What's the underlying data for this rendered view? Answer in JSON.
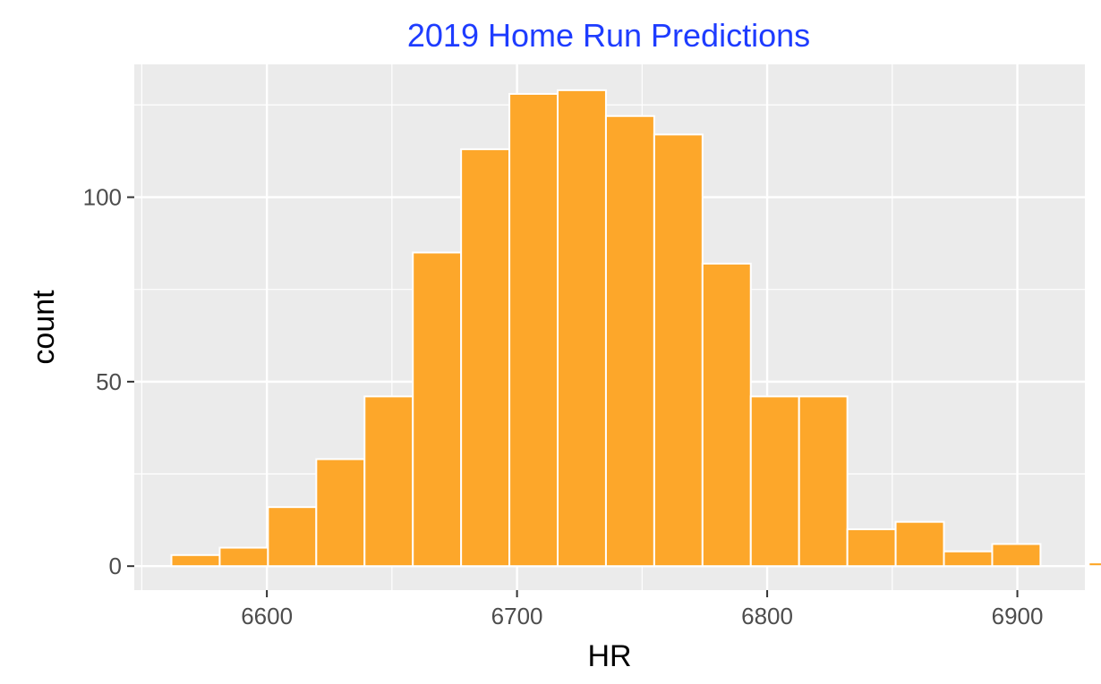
{
  "chart_data": {
    "type": "bar",
    "title": "2019 Home Run Predictions",
    "xlabel": "HR",
    "ylabel": "count",
    "xlim": [
      6547,
      6927
    ],
    "ylim": [
      -6.5,
      136
    ],
    "x_ticks": [
      6600,
      6700,
      6800,
      6900
    ],
    "y_ticks": [
      0,
      50,
      100
    ],
    "bin_width": 19.3,
    "bins": [
      {
        "center": 6571.5,
        "count": 3
      },
      {
        "center": 6590.8,
        "count": 5
      },
      {
        "center": 6610.1,
        "count": 16
      },
      {
        "center": 6629.4,
        "count": 29
      },
      {
        "center": 6648.7,
        "count": 46
      },
      {
        "center": 6668.0,
        "count": 85
      },
      {
        "center": 6687.3,
        "count": 113
      },
      {
        "center": 6706.6,
        "count": 128
      },
      {
        "center": 6725.9,
        "count": 129
      },
      {
        "center": 6745.2,
        "count": 122
      },
      {
        "center": 6764.5,
        "count": 117
      },
      {
        "center": 6783.8,
        "count": 82
      },
      {
        "center": 6803.1,
        "count": 46
      },
      {
        "center": 6822.4,
        "count": 46
      },
      {
        "center": 6841.7,
        "count": 10
      },
      {
        "center": 6861.0,
        "count": 12
      },
      {
        "center": 6880.3,
        "count": 4
      },
      {
        "center": 6899.6,
        "count": 6
      },
      {
        "center": 6918.9,
        "count": 0
      },
      {
        "center": 6938.2,
        "count": 1
      }
    ],
    "grid": true,
    "legend": "none",
    "colors": {
      "bar_fill": "#FDA72A",
      "bar_stroke": "#FFFFFF",
      "panel_background": "#EBEBEB",
      "grid_major": "#FFFFFF",
      "title": "#1E3CFF"
    }
  }
}
